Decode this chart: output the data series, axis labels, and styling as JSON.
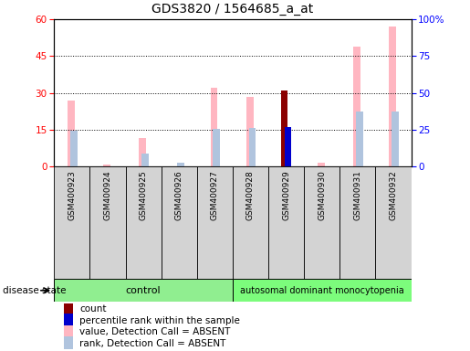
{
  "title": "GDS3820 / 1564685_a_at",
  "samples": [
    "GSM400923",
    "GSM400924",
    "GSM400925",
    "GSM400926",
    "GSM400927",
    "GSM400928",
    "GSM400929",
    "GSM400930",
    "GSM400931",
    "GSM400932"
  ],
  "ctrl_count": 5,
  "disease_count": 5,
  "control_label": "control",
  "disease_label": "autosomal dominant monocytopenia",
  "disease_state_label": "disease state",
  "value_absent": [
    27.0,
    1.0,
    11.5,
    0.0,
    32.0,
    28.5,
    0.0,
    1.5,
    49.0,
    57.0
  ],
  "rank_absent": [
    14.5,
    0.0,
    5.5,
    1.5,
    15.5,
    15.8,
    0.0,
    0.0,
    22.5,
    22.5
  ],
  "count": [
    0,
    0,
    0,
    0,
    0,
    0,
    31.0,
    0,
    0,
    0
  ],
  "percentile_rank": [
    0,
    0,
    0,
    0,
    0,
    0,
    16.0,
    0,
    0,
    0
  ],
  "left_yaxis": {
    "min": 0,
    "max": 60,
    "ticks": [
      0,
      15,
      30,
      45,
      60
    ],
    "color": "#FF0000"
  },
  "right_yaxis": {
    "min": 0,
    "max": 100,
    "ticks": [
      0,
      25,
      50,
      75,
      100
    ],
    "color": "#0000FF",
    "labels": [
      "0",
      "25",
      "50",
      "75",
      "100%"
    ]
  },
  "colors": {
    "count": "#8B0000",
    "percentile_rank": "#0000CD",
    "value_absent": "#FFB6C1",
    "rank_absent": "#B0C4DE",
    "control_bg": "#90EE90",
    "disease_bg": "#7CFC7C",
    "sample_bg": "#D3D3D3",
    "plot_bg": "#FFFFFF"
  },
  "legend": [
    {
      "label": "count",
      "color": "#8B0000"
    },
    {
      "label": "percentile rank within the sample",
      "color": "#0000CD"
    },
    {
      "label": "value, Detection Call = ABSENT",
      "color": "#FFB6C1"
    },
    {
      "label": "rank, Detection Call = ABSENT",
      "color": "#B0C4DE"
    }
  ]
}
